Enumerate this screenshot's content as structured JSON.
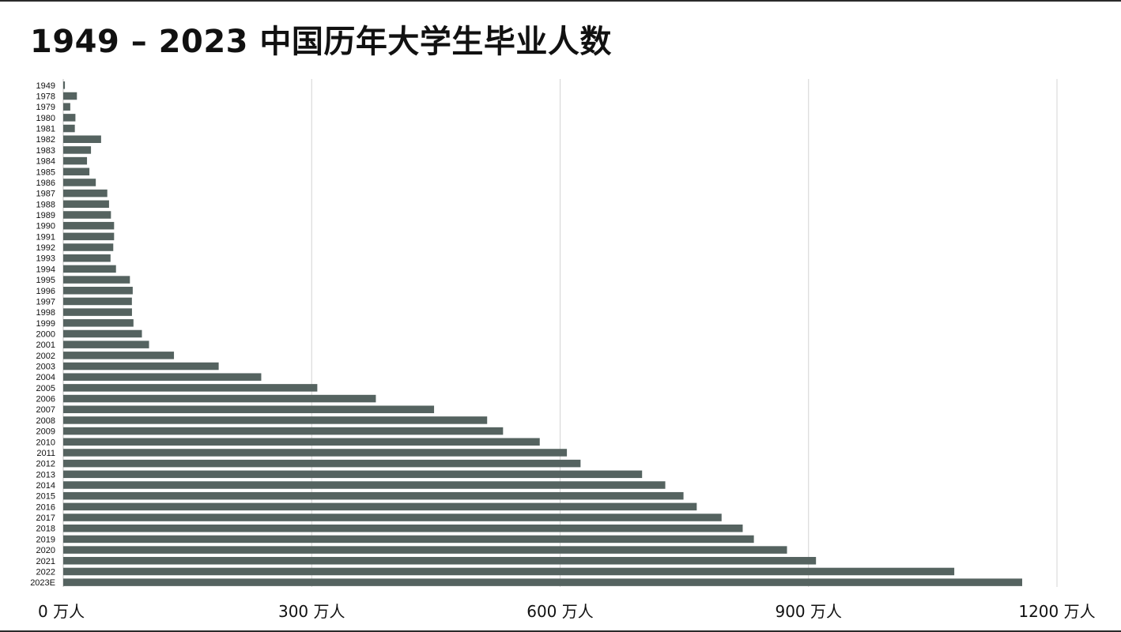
{
  "title": "1949 – 2023 中国历年大学生毕业人数",
  "chart_data": {
    "type": "bar",
    "orientation": "horizontal",
    "title": "1949 – 2023 中国历年大学生毕业人数",
    "xlabel": "",
    "ylabel": "",
    "xlim": [
      0,
      1200
    ],
    "x_unit": "万人",
    "x_ticks": [
      0,
      300,
      600,
      900,
      1200
    ],
    "x_tick_labels": [
      "0 万人",
      "300 万人",
      "600 万人",
      "900 万人",
      "1200 万人"
    ],
    "grid": "vertical",
    "legend": "none",
    "bar_color": "#556360",
    "categories": [
      "1949",
      "1978",
      "1979",
      "1980",
      "1981",
      "1982",
      "1983",
      "1984",
      "1985",
      "1986",
      "1987",
      "1988",
      "1989",
      "1990",
      "1991",
      "1992",
      "1993",
      "1994",
      "1995",
      "1996",
      "1997",
      "1998",
      "1999",
      "2000",
      "2001",
      "2002",
      "2003",
      "2004",
      "2005",
      "2006",
      "2007",
      "2008",
      "2009",
      "2010",
      "2011",
      "2012",
      "2013",
      "2014",
      "2015",
      "2016",
      "2017",
      "2018",
      "2019",
      "2020",
      "2021",
      "2022",
      "2023E"
    ],
    "values": [
      2,
      16.5,
      8.5,
      14.7,
      14,
      45.7,
      33.5,
      28.7,
      31.6,
      39.3,
      53.2,
      55.3,
      57.6,
      61.4,
      61.4,
      60.4,
      57.1,
      63.7,
      80.5,
      83.9,
      82.9,
      83,
      84.8,
      95,
      103.6,
      133.7,
      187.7,
      239.1,
      306.8,
      377.5,
      447.8,
      511.9,
      531.1,
      575.4,
      608.2,
      624.7,
      699,
      727,
      749,
      765,
      795,
      820.5,
      834,
      874,
      909,
      1076,
      1158
    ]
  }
}
